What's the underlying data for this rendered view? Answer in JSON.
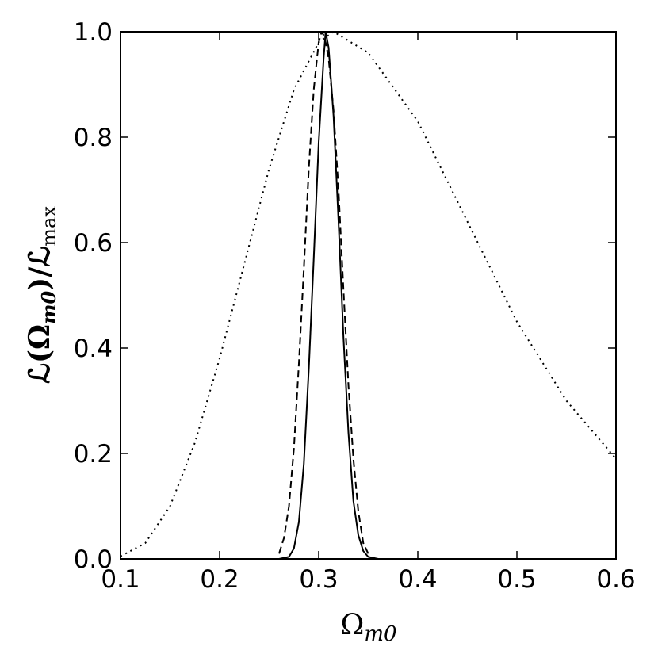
{
  "chart_data": {
    "type": "line",
    "title": "",
    "xlabel": {
      "base": "Ω",
      "sub": "m0"
    },
    "ylabel": {
      "main": "ℒ(Ω",
      "sub1": "m0",
      "mid": ")/ℒ",
      "sub2": "max"
    },
    "xlim": [
      0.1,
      0.6
    ],
    "ylim": [
      0.0,
      1.0
    ],
    "grid": false,
    "legend": "none",
    "x_ticks": [
      "0.1",
      "0.2",
      "0.3",
      "0.4",
      "0.5",
      "0.6"
    ],
    "y_ticks": [
      "0.0",
      "0.2",
      "0.4",
      "0.6",
      "0.8",
      "1.0"
    ],
    "series": [
      {
        "style": "solid",
        "color": "#000000",
        "points": [
          [
            0.1,
            0.0
          ],
          [
            0.2,
            0.0
          ],
          [
            0.25,
            0.0
          ],
          [
            0.26,
            0.0
          ],
          [
            0.27,
            0.004
          ],
          [
            0.275,
            0.02
          ],
          [
            0.28,
            0.07
          ],
          [
            0.285,
            0.18
          ],
          [
            0.29,
            0.36
          ],
          [
            0.295,
            0.57
          ],
          [
            0.3,
            0.79
          ],
          [
            0.305,
            0.95
          ],
          [
            0.307,
            1.0
          ],
          [
            0.31,
            0.97
          ],
          [
            0.315,
            0.84
          ],
          [
            0.32,
            0.64
          ],
          [
            0.325,
            0.42
          ],
          [
            0.33,
            0.24
          ],
          [
            0.335,
            0.11
          ],
          [
            0.34,
            0.045
          ],
          [
            0.345,
            0.015
          ],
          [
            0.35,
            0.004
          ],
          [
            0.36,
            0.0
          ],
          [
            0.4,
            0.0
          ],
          [
            0.5,
            0.0
          ],
          [
            0.6,
            0.0
          ]
        ]
      },
      {
        "style": "dashed",
        "color": "#000000",
        "points": [
          [
            0.26,
            0.01
          ],
          [
            0.265,
            0.04
          ],
          [
            0.27,
            0.1
          ],
          [
            0.275,
            0.21
          ],
          [
            0.28,
            0.37
          ],
          [
            0.285,
            0.55
          ],
          [
            0.29,
            0.74
          ],
          [
            0.295,
            0.89
          ],
          [
            0.3,
            0.98
          ],
          [
            0.303,
            1.0
          ],
          [
            0.306,
            0.99
          ],
          [
            0.31,
            0.95
          ],
          [
            0.315,
            0.85
          ],
          [
            0.32,
            0.7
          ],
          [
            0.325,
            0.51
          ],
          [
            0.33,
            0.33
          ],
          [
            0.335,
            0.19
          ],
          [
            0.34,
            0.09
          ],
          [
            0.345,
            0.03
          ],
          [
            0.35,
            0.01
          ]
        ]
      },
      {
        "style": "dotted",
        "color": "#000000",
        "points": [
          [
            0.1,
            0.005
          ],
          [
            0.125,
            0.03
          ],
          [
            0.15,
            0.1
          ],
          [
            0.175,
            0.22
          ],
          [
            0.2,
            0.38
          ],
          [
            0.225,
            0.56
          ],
          [
            0.25,
            0.74
          ],
          [
            0.275,
            0.89
          ],
          [
            0.3,
            0.98
          ],
          [
            0.315,
            1.0
          ],
          [
            0.35,
            0.96
          ],
          [
            0.4,
            0.83
          ],
          [
            0.45,
            0.64
          ],
          [
            0.5,
            0.45
          ],
          [
            0.55,
            0.3
          ],
          [
            0.6,
            0.19
          ]
        ]
      }
    ]
  }
}
